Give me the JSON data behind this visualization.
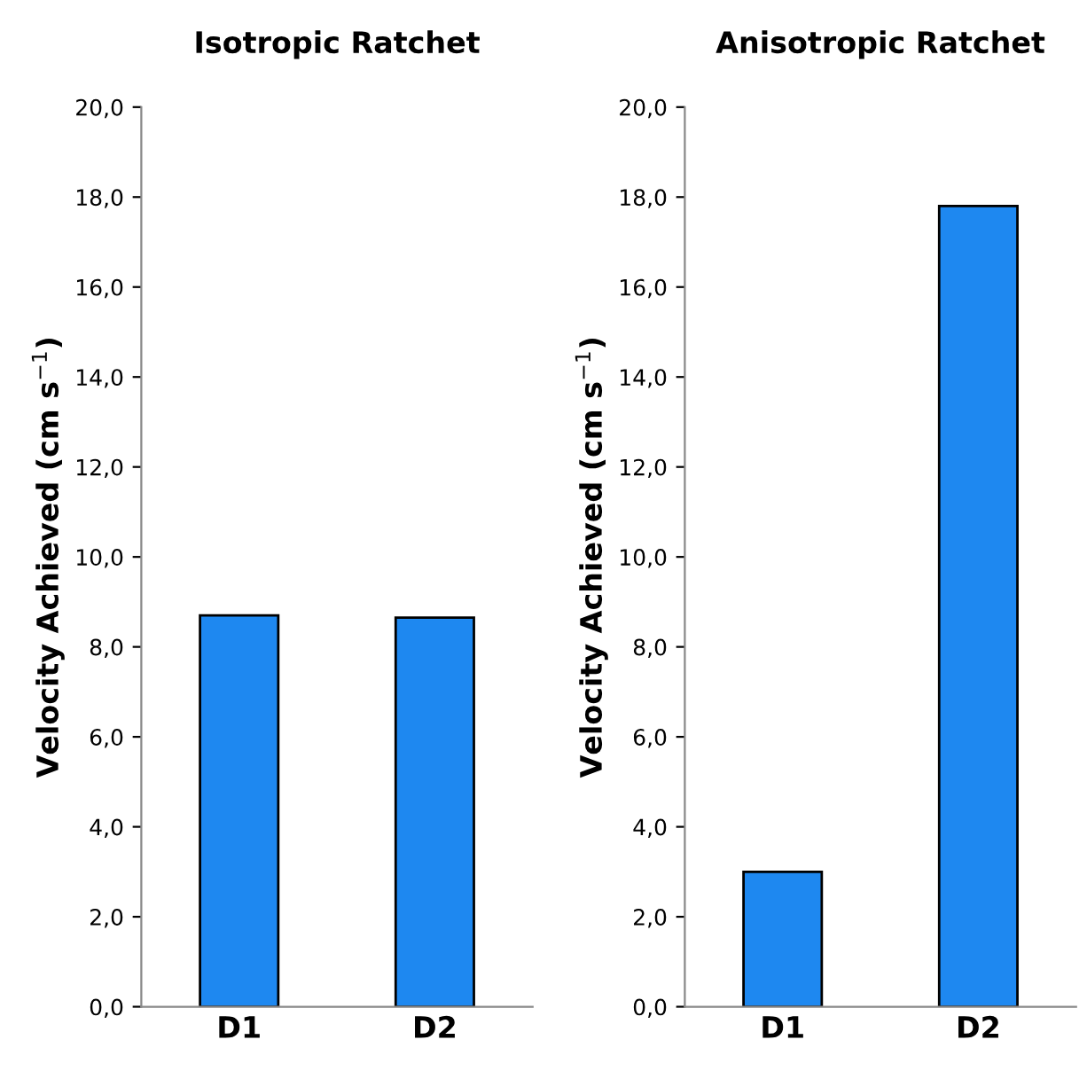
{
  "chart_data": [
    {
      "type": "bar",
      "title": "Isotropic Ratchet",
      "ylabel": "Velocity Achieved (cm s$^{−1}$)",
      "categories": [
        "D1",
        "D2"
      ],
      "values": [
        8.7,
        8.65
      ],
      "color": "#1e88f0",
      "ylim": [
        0,
        20
      ],
      "yticks": [
        {
          "value": 0,
          "label": "0,0"
        },
        {
          "value": 2,
          "label": "2,0"
        },
        {
          "value": 4,
          "label": "4,0"
        },
        {
          "value": 6,
          "label": "6,0"
        },
        {
          "value": 8,
          "label": "8,0"
        },
        {
          "value": 10,
          "label": "10,0"
        },
        {
          "value": 12,
          "label": "12,0"
        },
        {
          "value": 14,
          "label": "14,0"
        },
        {
          "value": 16,
          "label": "16,0"
        },
        {
          "value": 18,
          "label": "18,0"
        },
        {
          "value": 20,
          "label": "20,0"
        }
      ],
      "grid": false
    },
    {
      "type": "bar",
      "title": "Anisotropic Ratchet",
      "ylabel": "Velocity Achieved (cm s$^{−1}$)",
      "categories": [
        "D1",
        "D2"
      ],
      "values": [
        3.0,
        17.8
      ],
      "color": "#1e88f0",
      "ylim": [
        0,
        20
      ],
      "yticks": [
        {
          "value": 0,
          "label": "0,0"
        },
        {
          "value": 2,
          "label": "2,0"
        },
        {
          "value": 4,
          "label": "4,0"
        },
        {
          "value": 6,
          "label": "6,0"
        },
        {
          "value": 8,
          "label": "8,0"
        },
        {
          "value": 10,
          "label": "10,0"
        },
        {
          "value": 12,
          "label": "12,0"
        },
        {
          "value": 14,
          "label": "14,0"
        },
        {
          "value": 16,
          "label": "16,0"
        },
        {
          "value": 18,
          "label": "18,0"
        },
        {
          "value": 20,
          "label": "20,0"
        }
      ],
      "grid": false
    }
  ]
}
